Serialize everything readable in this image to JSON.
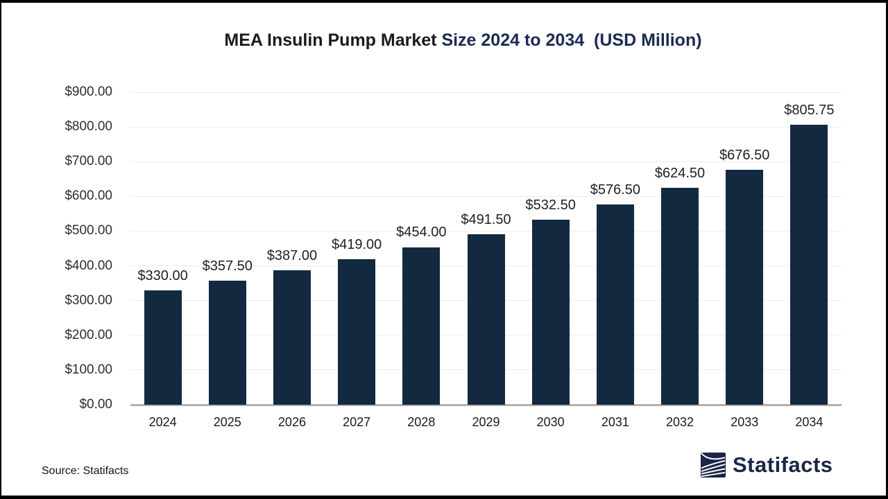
{
  "title": {
    "primary": "MEA Insulin Pump Market ",
    "accent": "Size 2024 to 2034  (USD Million)"
  },
  "chart_data": {
    "type": "bar",
    "categories": [
      "2024",
      "2025",
      "2026",
      "2027",
      "2028",
      "2029",
      "2030",
      "2031",
      "2032",
      "2033",
      "2034"
    ],
    "values": [
      330,
      357.5,
      387,
      419,
      454,
      491.5,
      532.5,
      576.5,
      624.5,
      676.5,
      805.75
    ],
    "value_labels": [
      "$330.00",
      "$357.50",
      "$387.00",
      "$419.00",
      "$454.00",
      "$491.50",
      "$532.50",
      "$576.50",
      "$624.50",
      "$676.50",
      "$805.75"
    ],
    "y_tick_labels": [
      "$0.00",
      "$100.00",
      "$200.00",
      "$300.00",
      "$400.00",
      "$500.00",
      "$600.00",
      "$700.00",
      "$800.00",
      "$900.00"
    ],
    "y_tick_step": 100,
    "ylim": [
      0,
      900
    ],
    "xlabel": "",
    "ylabel": "",
    "grid": "horizontal",
    "legend_position": "none",
    "bar_color": "#122940",
    "gridline_color": "#ececec",
    "baseline_color": "#b0b0b0",
    "title": "MEA Insulin Pump Market Size 2024 to 2034  (USD Million)"
  },
  "footer": {
    "source": "Source: Statifacts",
    "logo_text": "Statifacts",
    "logo_icon": "waves-icon",
    "logo_color": "#1b2547"
  }
}
